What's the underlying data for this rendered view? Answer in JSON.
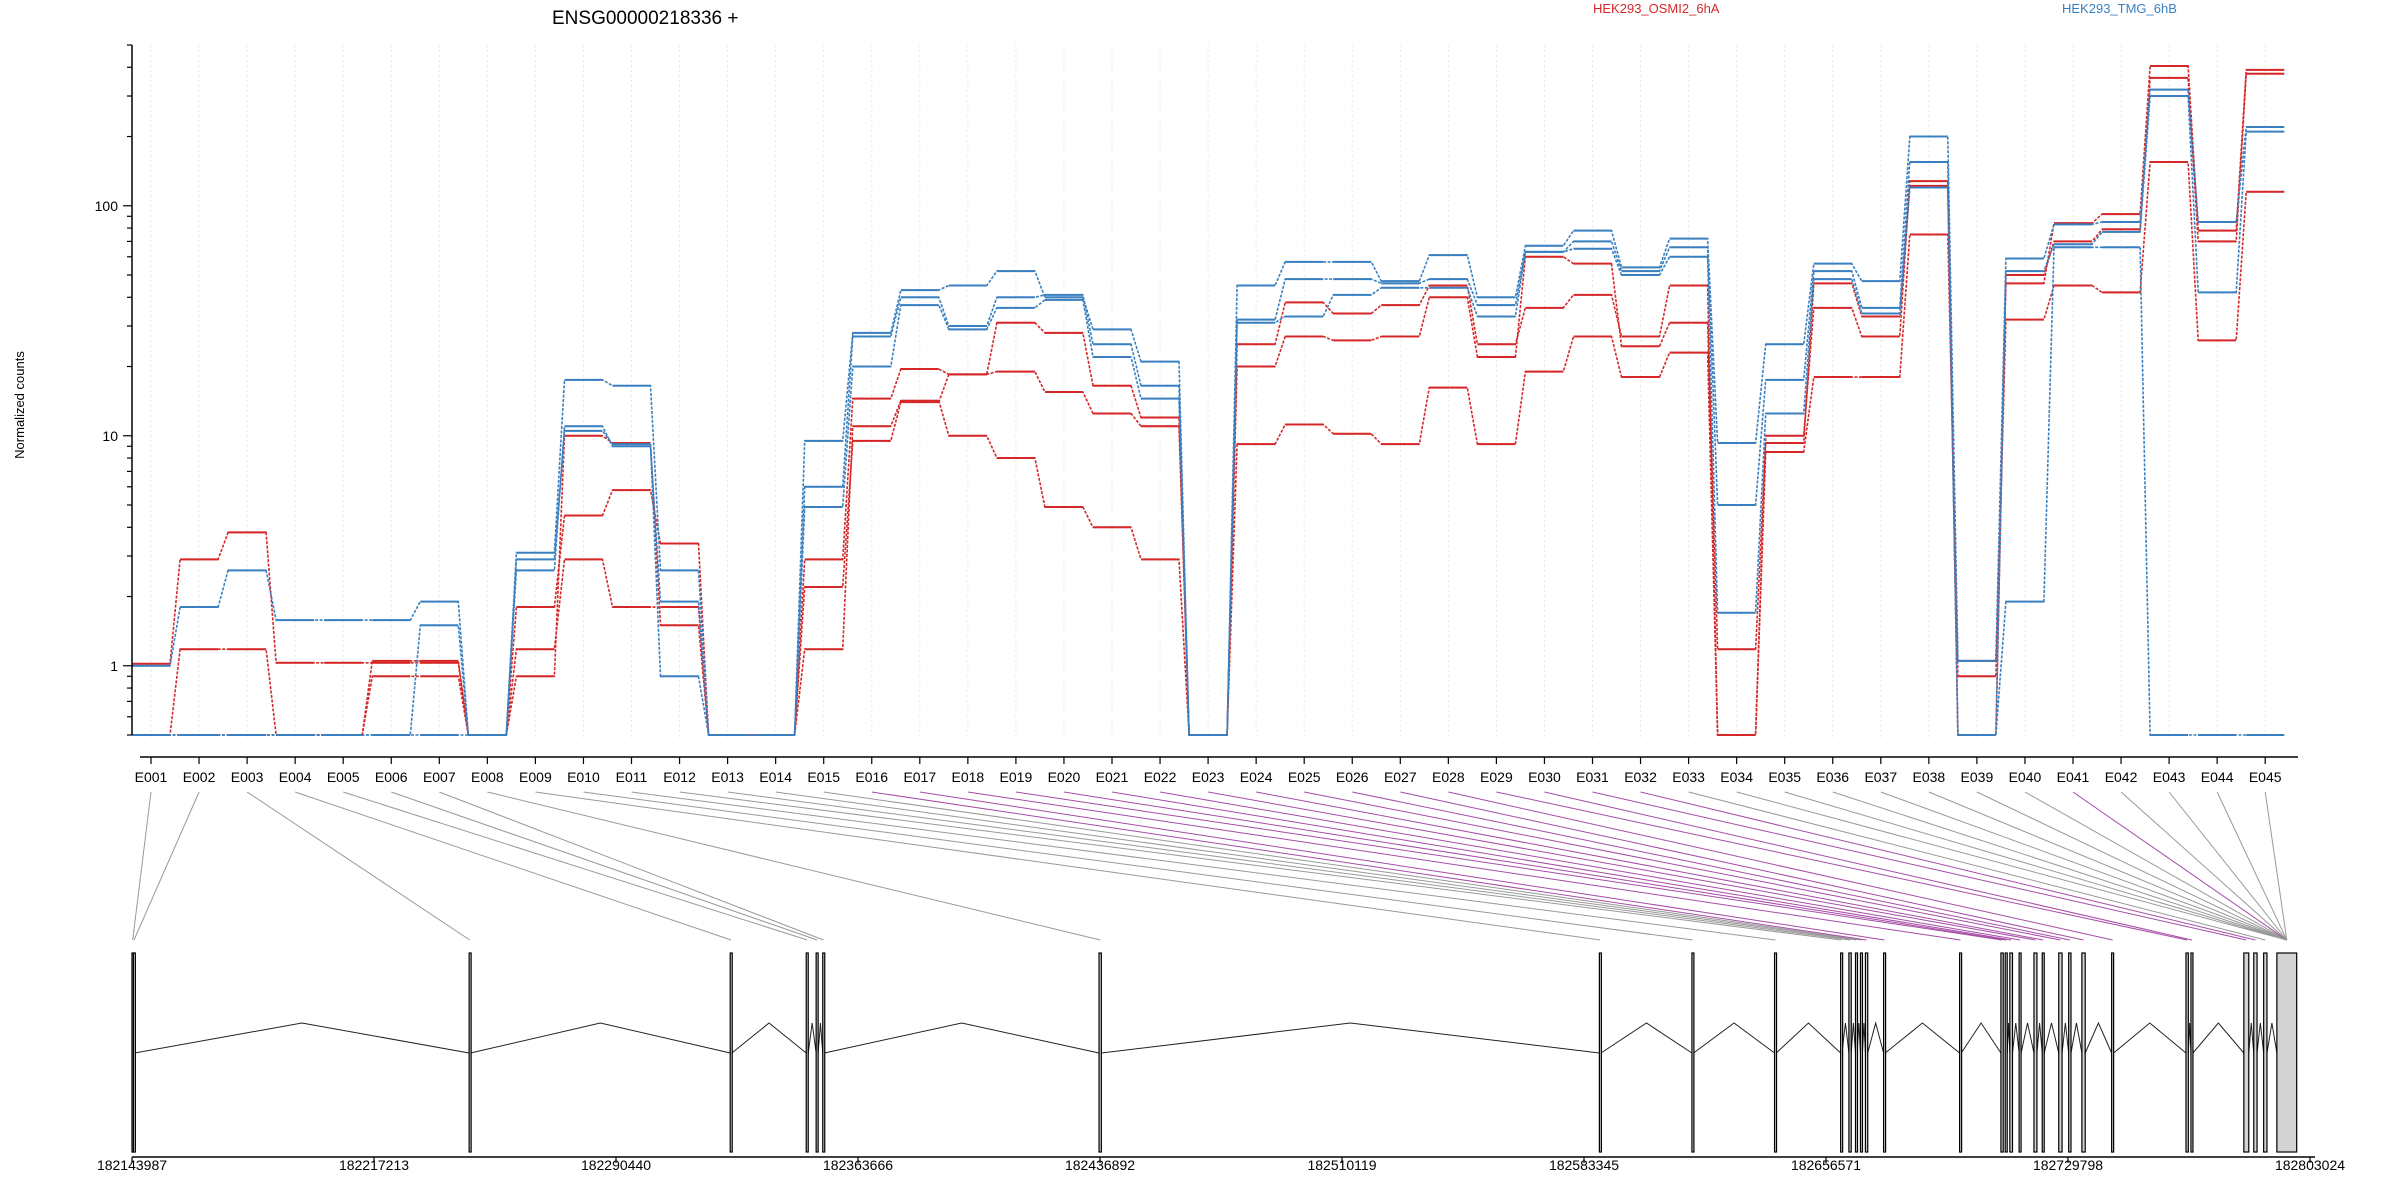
{
  "chart_data": {
    "type": "line",
    "title": "ENSG00000218336 +",
    "ylabel": "Normalized counts",
    "yscale": "log",
    "ylim": [
      0.5,
      500
    ],
    "ytick_labels": [
      "1",
      "10",
      "100"
    ],
    "legend": [
      {
        "name": "HEK293_OSMI2_6hA",
        "color": "#d62728"
      },
      {
        "name": "HEK293_TMG_6hB",
        "color": "#3a80c0"
      }
    ],
    "legend_placement": "top-right",
    "categories": [
      "E001",
      "E002",
      "E003",
      "E004",
      "E005",
      "E006",
      "E007",
      "E008",
      "E009",
      "E010",
      "E011",
      "E012",
      "E013",
      "E014",
      "E015",
      "E016",
      "E017",
      "E018",
      "E019",
      "E020",
      "E021",
      "E022",
      "E023",
      "E024",
      "E025",
      "E026",
      "E027",
      "E028",
      "E029",
      "E030",
      "E031",
      "E032",
      "E033",
      "E034",
      "E035",
      "E036",
      "E037",
      "E038",
      "E039",
      "E040",
      "E041",
      "E042",
      "E043",
      "E044",
      "E045"
    ],
    "series": [
      {
        "color": "#d62728",
        "values": [
          1.02,
          2.9,
          3.8,
          1.03,
          1.03,
          1.03,
          1.03,
          0.5,
          1.8,
          4.5,
          5.8,
          3.4,
          0.5,
          0.5,
          2.9,
          14.5,
          19.5,
          18.5,
          31,
          28,
          16.5,
          12,
          0.5,
          25,
          38,
          34,
          37,
          45,
          25,
          36,
          41,
          27,
          45,
          0.5,
          10,
          36,
          27,
          128,
          1.05,
          46,
          84,
          92,
          405,
          78,
          390
        ]
      },
      {
        "color": "#d62728",
        "values": [
          0.5,
          1.18,
          1.18,
          0.5,
          0.5,
          0.9,
          0.9,
          0.5,
          1.18,
          2.9,
          1.8,
          1.8,
          0.5,
          0.5,
          1.18,
          11,
          14.2,
          10,
          8,
          4.9,
          4.0,
          2.9,
          0.5,
          9.2,
          11.2,
          10.2,
          9.2,
          16.2,
          9.2,
          19,
          27,
          18,
          23,
          0.5,
          8.5,
          18,
          18,
          75,
          0.9,
          32,
          45,
          42,
          155,
          26,
          115
        ]
      },
      {
        "color": "#d62728",
        "values": [
          0.5,
          0.5,
          0.5,
          0.5,
          0.5,
          1.05,
          1.05,
          0.5,
          0.9,
          10,
          9.3,
          1.5,
          0.5,
          0.5,
          2.2,
          9.5,
          14,
          18.5,
          19,
          15.5,
          12.5,
          11,
          0.5,
          20,
          27,
          26,
          27,
          40,
          22,
          60,
          56,
          24.5,
          31,
          1.18,
          9.3,
          46,
          33,
          122,
          0.5,
          50,
          70,
          79,
          360,
          70,
          375
        ]
      },
      {
        "color": "#3a80c0",
        "values": [
          1.0,
          1.8,
          2.6,
          1.58,
          1.58,
          1.58,
          1.9,
          0.5,
          3.1,
          17.5,
          16.5,
          2.6,
          0.5,
          0.5,
          9.5,
          28,
          43,
          45,
          52,
          40,
          29,
          21,
          0.5,
          45,
          57,
          57,
          47,
          61,
          40,
          67,
          78,
          54,
          72,
          9.3,
          25,
          56,
          47,
          200,
          1.05,
          59,
          83,
          85,
          320,
          85,
          220
        ]
      },
      {
        "color": "#3a80c0",
        "values": [
          0.5,
          0.5,
          0.5,
          0.5,
          0.5,
          0.5,
          0.5,
          0.5,
          2.9,
          10.5,
          9.2,
          0.9,
          0.5,
          0.5,
          6.0,
          27,
          40,
          30,
          40,
          41,
          25,
          16.5,
          0.5,
          32,
          48,
          48,
          46,
          48,
          37,
          63,
          70,
          52,
          66,
          5.0,
          17.5,
          52,
          36,
          155,
          0.5,
          1.9,
          66,
          66,
          0.5,
          0.5,
          0.5
        ]
      },
      {
        "color": "#3a80c0",
        "values": [
          0.5,
          0.5,
          0.5,
          0.5,
          0.5,
          0.5,
          1.5,
          0.5,
          2.6,
          11,
          9.0,
          1.9,
          0.5,
          0.5,
          4.9,
          20,
          37,
          29,
          36,
          39,
          22,
          14.5,
          0.5,
          31,
          33,
          41,
          44,
          44,
          33,
          63,
          65,
          50,
          60,
          1.7,
          12.5,
          48,
          34,
          120,
          0.5,
          52,
          68,
          77,
          300,
          42,
          210
        ]
      }
    ],
    "x_genomic_tick_labels": [
      "182143987",
      "182217213",
      "182290440",
      "182363666",
      "182436892",
      "182510119",
      "182583345",
      "182656571",
      "182729798",
      "182803024"
    ],
    "genomic_range": [
      182143987,
      182803024
    ],
    "exons": [
      [
        182143987,
        182144400
      ],
      [
        182144400,
        182144800
      ],
      [
        182246000,
        182246400
      ],
      [
        182325000,
        182325500
      ],
      [
        182348000,
        182348600
      ],
      [
        182351000,
        182351600
      ],
      [
        182353000,
        182353500
      ],
      [
        182436600,
        182437300
      ],
      [
        182588000,
        182588500
      ],
      [
        182616000,
        182616500
      ],
      [
        182641000,
        182641500
      ],
      [
        182661000,
        182661400
      ],
      [
        182663500,
        182664200
      ],
      [
        182665500,
        182666000
      ],
      [
        182667000,
        182667600
      ],
      [
        182668500,
        182669200
      ],
      [
        182674000,
        182674500
      ],
      [
        182697000,
        182697500
      ],
      [
        182709500,
        182710200
      ],
      [
        182710800,
        182711400
      ],
      [
        182712200,
        182713000
      ],
      [
        182715000,
        182715600
      ],
      [
        182719500,
        182720400
      ],
      [
        182722000,
        182722600
      ],
      [
        182727000,
        182728000
      ],
      [
        182730000,
        182730700
      ],
      [
        182734000,
        182735000
      ],
      [
        182743000,
        182743600
      ],
      [
        182765500,
        182766200
      ],
      [
        182767000,
        182767600
      ],
      [
        182783000,
        182784500
      ],
      [
        182786000,
        182787000
      ],
      [
        182789000,
        182790000
      ],
      [
        182793000,
        182799000
      ]
    ],
    "exon_link_highlight": [
      16,
      17,
      18,
      19,
      20,
      21,
      22,
      23,
      24,
      25,
      26,
      27,
      28,
      29,
      30,
      31,
      32,
      41
    ]
  },
  "colors": {
    "axis": "#000000",
    "grid": "#e6e6e6",
    "link_grey": "#999999",
    "link_purple": "#a64ca6",
    "exon_fill": "#d3d3d3"
  }
}
